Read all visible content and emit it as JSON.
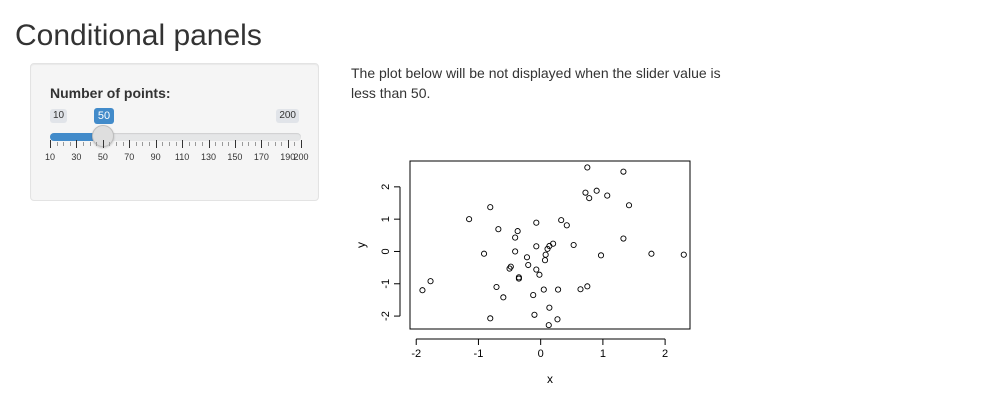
{
  "page": {
    "title": "Conditional panels"
  },
  "slider": {
    "label": "Number of points:",
    "min": 10,
    "max": 200,
    "value": 50,
    "min_label": "10",
    "max_label": "200",
    "value_label": "50",
    "accent_color": "#428bca",
    "ticks": [
      {
        "value": 10,
        "label": "10"
      },
      {
        "value": 30,
        "label": "30"
      },
      {
        "value": 50,
        "label": "50"
      },
      {
        "value": 70,
        "label": "70"
      },
      {
        "value": 90,
        "label": "90"
      },
      {
        "value": 110,
        "label": "110"
      },
      {
        "value": 130,
        "label": "130"
      },
      {
        "value": 150,
        "label": "150"
      },
      {
        "value": 170,
        "label": "170"
      },
      {
        "value": 190,
        "label": "190"
      },
      {
        "value": 200,
        "label": "200"
      }
    ]
  },
  "main": {
    "description": "The plot below will be not displayed when the slider value is less than 50."
  },
  "chart_data": {
    "type": "scatter",
    "xlabel": "x",
    "ylabel": "y",
    "xlim": [
      -2.1,
      2.4
    ],
    "ylim": [
      -2.4,
      2.8
    ],
    "xticks": [
      -2,
      -1,
      0,
      1,
      2
    ],
    "yticks": [
      -2,
      -1,
      0,
      1,
      2
    ],
    "points": [
      [
        0.75,
        2.6
      ],
      [
        1.33,
        2.47
      ],
      [
        0.72,
        1.82
      ],
      [
        0.9,
        1.88
      ],
      [
        0.78,
        1.65
      ],
      [
        1.07,
        1.73
      ],
      [
        1.42,
        1.43
      ],
      [
        -0.81,
        1.37
      ],
      [
        -1.15,
        1.0
      ],
      [
        -0.07,
        0.89
      ],
      [
        0.33,
        0.97
      ],
      [
        0.42,
        0.81
      ],
      [
        -0.68,
        0.69
      ],
      [
        -0.37,
        0.63
      ],
      [
        -0.41,
        0.43
      ],
      [
        1.33,
        0.4
      ],
      [
        0.2,
        0.24
      ],
      [
        0.14,
        0.17
      ],
      [
        -0.07,
        0.16
      ],
      [
        0.53,
        0.2
      ],
      [
        0.11,
        0.08
      ],
      [
        -0.41,
        0.0
      ],
      [
        -0.91,
        -0.07
      ],
      [
        0.08,
        -0.1
      ],
      [
        0.97,
        -0.12
      ],
      [
        1.78,
        -0.07
      ],
      [
        2.3,
        -0.1
      ],
      [
        0.07,
        -0.27
      ],
      [
        -0.22,
        -0.18
      ],
      [
        -0.2,
        -0.42
      ],
      [
        -0.48,
        -0.47
      ],
      [
        -0.5,
        -0.53
      ],
      [
        -0.07,
        -0.56
      ],
      [
        -0.02,
        -0.72
      ],
      [
        -0.35,
        -0.84
      ],
      [
        -1.77,
        -0.92
      ],
      [
        -0.71,
        -1.1
      ],
      [
        0.75,
        -1.08
      ],
      [
        0.64,
        -1.17
      ],
      [
        0.05,
        -1.18
      ],
      [
        0.28,
        -1.18
      ],
      [
        -1.9,
        -1.2
      ],
      [
        -0.12,
        -1.35
      ],
      [
        -0.6,
        -1.42
      ],
      [
        0.14,
        -1.74
      ],
      [
        -0.1,
        -1.96
      ],
      [
        -0.81,
        -2.07
      ],
      [
        0.27,
        -2.1
      ],
      [
        0.13,
        -2.28
      ],
      [
        -0.35,
        -0.8
      ]
    ]
  }
}
